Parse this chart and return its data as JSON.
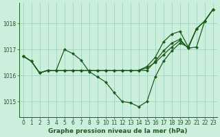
{
  "xlabel": "Graphe pression niveau de la mer (hPa)",
  "bg_color": "#cceedd",
  "grid_color": "#99ccbb",
  "line_color": "#1a5c1a",
  "x_ticks": [
    0,
    1,
    2,
    3,
    4,
    5,
    6,
    7,
    8,
    9,
    10,
    11,
    12,
    13,
    14,
    15,
    16,
    17,
    18,
    19,
    20,
    21,
    22,
    23
  ],
  "ylim": [
    1014.4,
    1018.8
  ],
  "yticks": [
    1015,
    1016,
    1017,
    1018
  ],
  "series": [
    [
      1016.75,
      1016.55,
      1016.1,
      1016.2,
      1016.2,
      1017.0,
      1016.85,
      1016.6,
      1016.15,
      1015.95,
      1015.75,
      1015.35,
      1015.0,
      1014.95,
      1014.8,
      1015.0,
      1015.95,
      1016.55,
      1016.95,
      1017.25,
      1017.1,
      1017.8,
      1018.1,
      1018.55
    ],
    [
      1016.75,
      1016.55,
      1016.1,
      1016.2,
      1016.2,
      1016.2,
      1016.2,
      1016.2,
      1016.2,
      1016.2,
      1016.2,
      1016.2,
      1016.2,
      1016.2,
      1016.2,
      1016.3,
      1016.5,
      1016.8,
      1017.1,
      1017.35,
      1017.05,
      1017.1,
      1018.1,
      1018.55
    ],
    [
      1016.75,
      1016.55,
      1016.1,
      1016.2,
      1016.2,
      1016.2,
      1016.2,
      1016.2,
      1016.2,
      1016.2,
      1016.2,
      1016.2,
      1016.2,
      1016.2,
      1016.2,
      1016.35,
      1016.7,
      1017.3,
      1017.6,
      1017.7,
      1017.1,
      1017.8,
      1018.1,
      1018.55
    ],
    [
      1016.75,
      1016.55,
      1016.1,
      1016.2,
      1016.2,
      1016.2,
      1016.2,
      1016.2,
      1016.2,
      1016.2,
      1016.2,
      1016.2,
      1016.2,
      1016.2,
      1016.2,
      1016.2,
      1016.55,
      1016.95,
      1017.25,
      1017.4,
      1017.05,
      1017.8,
      1018.1,
      1018.55
    ]
  ],
  "xlim": [
    -0.5,
    23.5
  ],
  "tick_fontsize": 5.5,
  "xlabel_fontsize": 6.5,
  "marker_size": 2.0,
  "linewidth": 0.9
}
